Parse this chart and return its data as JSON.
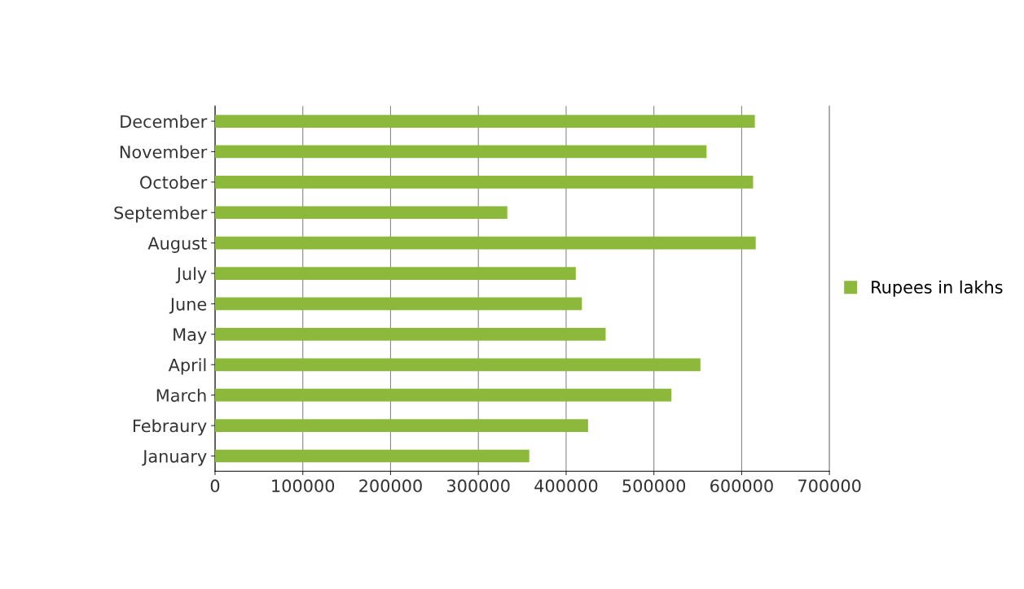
{
  "chart_data": {
    "type": "bar",
    "orientation": "horizontal",
    "categories": [
      "December",
      "November",
      "October",
      "September",
      "August",
      "July",
      "June",
      "May",
      "April",
      "March",
      "Febraury",
      "January"
    ],
    "series": [
      {
        "name": "Rupees in lakhs",
        "color": "#8cb83c",
        "values": [
          615000,
          560000,
          613000,
          333000,
          616000,
          411000,
          418000,
          445000,
          553000,
          520000,
          425000,
          358000
        ]
      }
    ],
    "xlim": [
      0,
      700000
    ],
    "xticks": [
      0,
      100000,
      200000,
      300000,
      400000,
      500000,
      600000,
      700000
    ],
    "grid": "x",
    "legend": "right"
  }
}
